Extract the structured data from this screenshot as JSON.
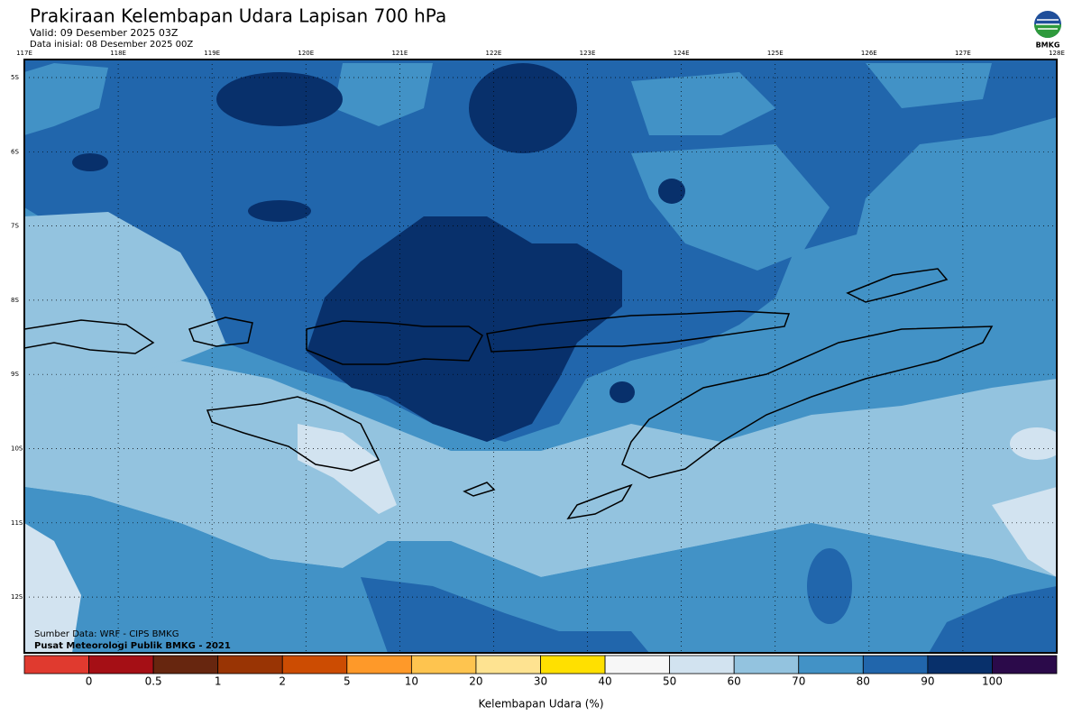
{
  "header": {
    "title": "Prakiraan Kelembapan Udara Lapisan 700 hPa",
    "valid": "Valid: 09 Desember 2025 03Z",
    "initial": "Data inisial: 08 Desember 2025 00Z",
    "logo": "BMKG"
  },
  "map": {
    "lon_labels": [
      "117E",
      "118E",
      "119E",
      "120E",
      "121E",
      "122E",
      "123E",
      "124E",
      "125E",
      "126E",
      "127E",
      "128E"
    ],
    "lat_labels": [
      "5S",
      "6S",
      "7S",
      "8S",
      "9S",
      "10S",
      "11S",
      "12S"
    ],
    "source": "Sumber Data: WRF - CIPS BMKG",
    "credit": "Pusat Meteorologi Publik BMKG - 2021"
  },
  "colorbar": {
    "ticks": [
      0,
      0.5,
      1,
      2,
      5,
      10,
      20,
      30,
      40,
      50,
      60,
      70,
      80,
      90,
      100
    ],
    "colors": [
      "#e03a2f",
      "#a50f15",
      "#67260f",
      "#993404",
      "#cc4c02",
      "#fe9929",
      "#fec44f",
      "#fee391",
      "#ffe000",
      "#f7f7f7",
      "#d2e3f0",
      "#93c3df",
      "#4292c6",
      "#2166ac",
      "#08306b",
      "#2b0a4a"
    ],
    "label": "Kelembapan Udara (%)"
  }
}
